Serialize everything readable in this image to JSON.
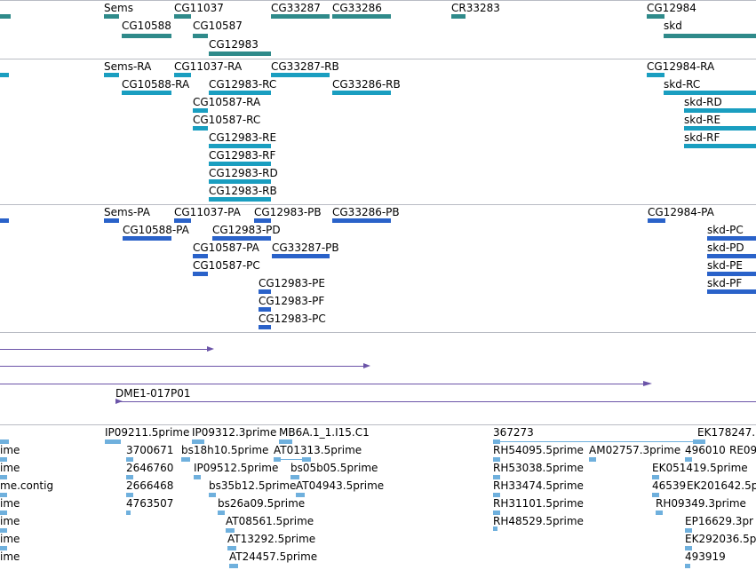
{
  "tracks": {
    "genes": {
      "labels": [
        "Sems",
        "CG11037",
        "CG33287",
        "CG33286",
        "CR33283",
        "CG12984",
        "CG10588",
        "CG10587",
        "CG12983",
        "skd"
      ]
    },
    "transcripts": {
      "labels": [
        "Sems-RA",
        "CG11037-RA",
        "CG33287-RB",
        "CG12984-RA",
        "CG10588-RA",
        "CG12983-RC",
        "CG33286-RB",
        "skd-RC",
        "CG10587-RA",
        "skd-RD",
        "CG10587-RC",
        "skd-RE",
        "skd-RF",
        "CG12983-RE",
        "CG12983-RF",
        "CG12983-RD",
        "CG12983-RB"
      ]
    },
    "proteins": {
      "labels": [
        "Sems-PA",
        "CG11037-PA",
        "CG12983-PB",
        "CG33286-PB",
        "CG12984-PA",
        "CG10588-PA",
        "CG12983-PD",
        "skd-PC",
        "CG10587-PA",
        "CG33287-PB",
        "skd-PD",
        "CG10587-PC",
        "skd-PE",
        "CG12983-PE",
        "skd-PF",
        "CG12983-PF",
        "CG12983-PC"
      ]
    },
    "clones": {
      "labels": [
        "DME1-017P01"
      ]
    },
    "ests": {
      "labels": [
        "IP09211.5prime",
        "IP09312.3prime",
        "MB6A.1_1.I15.C1",
        "367273",
        "EK178247.",
        "ime",
        "3700671",
        "bs18h10.5prime",
        "AT01313.5prime",
        "RH54095.5prime",
        "AM02757.3prime",
        "496010",
        "RE09",
        "ime",
        "2646760",
        "IP09512.5prime",
        "bs05b05.5prime",
        "RH53038.5prime",
        "EK051419.5prime",
        "me.contig",
        "2666468",
        "bs35b12.5prime",
        "AT04943.5prime",
        "RH33474.5prime",
        "46539",
        "EK201642.5p",
        "ime",
        "4763507",
        "bs26a09.5prime",
        "RH31101.5prime",
        "RH09349.3prime",
        "ime",
        "AT08561.5prime",
        "RH48529.5prime",
        "EP16629.3pr",
        "ime",
        "AT13292.5prime",
        "EK292036.5p",
        "ime",
        "AT24457.5prime",
        "493919"
      ]
    }
  },
  "colors": {
    "gene": "#2f8a8a",
    "transcript": "#1a9ec0",
    "protein": "#2a62c9",
    "clone": "#6b54a8",
    "est": "#6fb0dd",
    "divider": "#b9bcc4"
  }
}
